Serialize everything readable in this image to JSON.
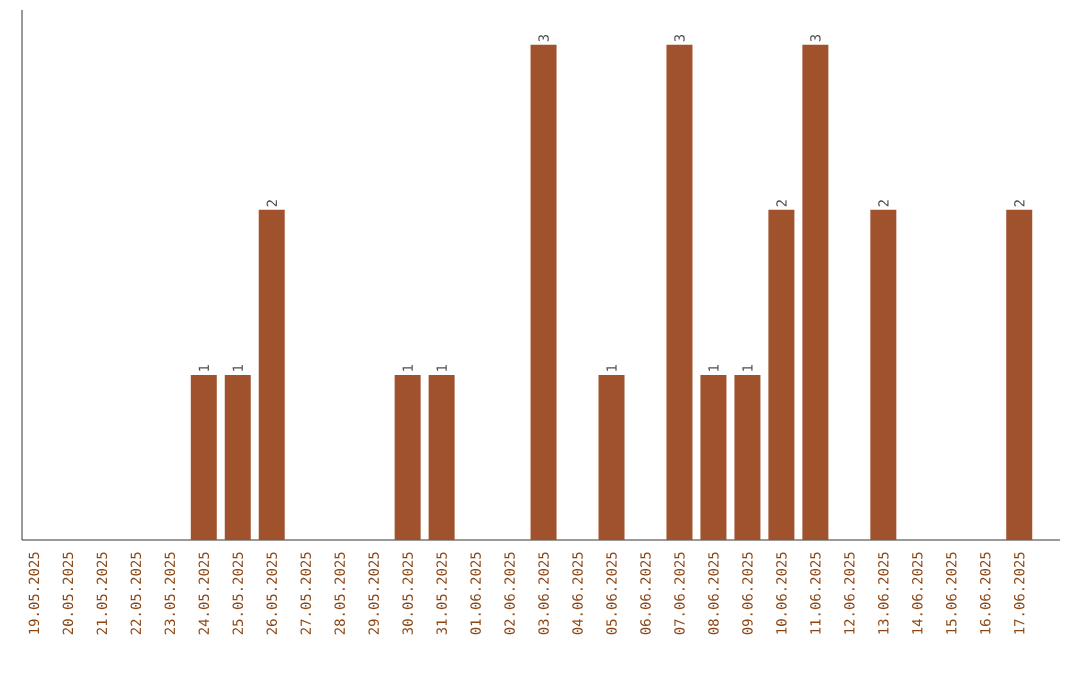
{
  "chart_data": {
    "type": "bar",
    "categories": [
      "19.05.2025",
      "20.05.2025",
      "21.05.2025",
      "22.05.2025",
      "23.05.2025",
      "24.05.2025",
      "25.05.2025",
      "26.05.2025",
      "27.05.2025",
      "28.05.2025",
      "29.05.2025",
      "30.05.2025",
      "31.05.2025",
      "01.06.2025",
      "02.06.2025",
      "03.06.2025",
      "04.06.2025",
      "05.06.2025",
      "06.06.2025",
      "07.06.2025",
      "08.06.2025",
      "09.06.2025",
      "10.06.2025",
      "11.06.2025",
      "12.06.2025",
      "13.06.2025",
      "14.06.2025",
      "15.06.2025",
      "16.06.2025",
      "17.06.2025"
    ],
    "values": [
      0,
      0,
      0,
      0,
      0,
      1,
      1,
      2,
      0,
      0,
      0,
      1,
      1,
      0,
      0,
      3,
      0,
      1,
      0,
      3,
      1,
      1,
      2,
      3,
      0,
      2,
      0,
      0,
      0,
      2
    ],
    "value_labels": [
      null,
      null,
      null,
      null,
      null,
      "1",
      "1",
      "2",
      null,
      null,
      null,
      "1",
      "1",
      null,
      null,
      "3",
      null,
      "1",
      null,
      "3",
      "1",
      "1",
      "2",
      "3",
      null,
      "2",
      null,
      null,
      null,
      "2"
    ],
    "color": "#a0522d"
  }
}
